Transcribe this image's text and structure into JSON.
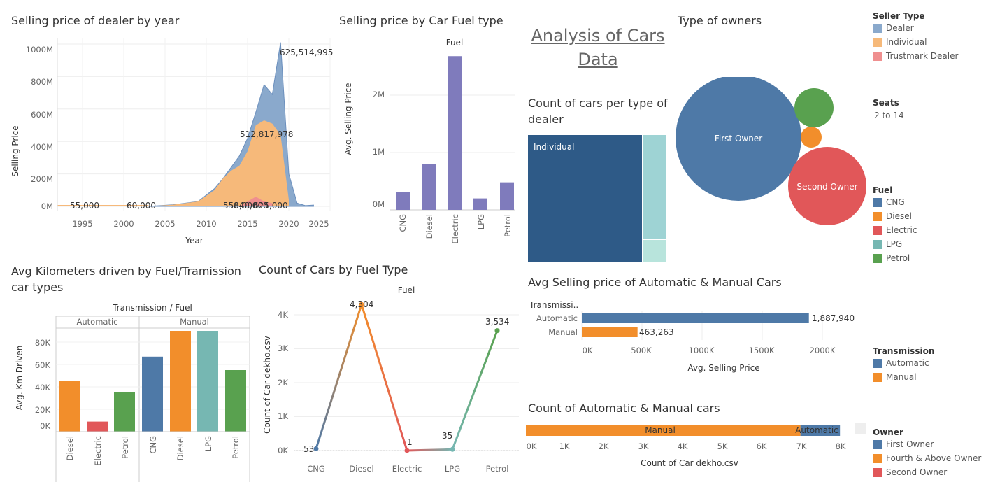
{
  "colors": {
    "dealer": "#8aa9cc",
    "individual": "#f6b97a",
    "trustmark": "#ef8f8f",
    "purple": "#7f7bbc",
    "blue": "#4e79a7",
    "orange": "#f28e2b",
    "red": "#e15759",
    "teal": "#76b7b2",
    "green": "#59a14f",
    "treemap_dark": "#2e5a87",
    "treemap_mid": "#9ed3d4",
    "treemap_light": "#b8e4dc"
  },
  "main_title": "Analysis of Cars Data",
  "charts": {
    "year": {
      "title": "Selling price of dealer by year",
      "xlabel": "Year",
      "ylabel": "Selling Price",
      "xticks": [
        "1995",
        "2000",
        "2005",
        "2010",
        "2015",
        "2020",
        "2025"
      ],
      "yticks": [
        "0M",
        "200M",
        "400M",
        "600M",
        "800M",
        "1000M"
      ],
      "labels": [
        "625,514,995",
        "512,817,978",
        "55,000",
        "60,000",
        "550,000",
        "840,000",
        "625,000"
      ]
    },
    "fuel_price": {
      "title": "Selling price by Car Fuel type",
      "header": "Fuel",
      "ylabel": "Avg. Selling Price",
      "yticks": [
        "0M",
        "1M",
        "2M"
      ],
      "categories": [
        "CNG",
        "Diesel",
        "Electric",
        "LPG",
        "Petrol"
      ]
    },
    "treemap": {
      "title": "Count of cars per type of dealer",
      "label": "Individual"
    },
    "owners": {
      "title": "Type of owners",
      "first": "First Owner",
      "second": "Second Owner"
    },
    "km": {
      "title": "Avg Kilometers driven by Fuel/Tramission car types",
      "header": "Transmission / Fuel",
      "groups": [
        "Automatic",
        "Manual"
      ],
      "ylabel": "Avg. Km Driven",
      "yticks": [
        "0K",
        "20K",
        "40K",
        "60K",
        "80K"
      ],
      "categories": [
        "Diesel",
        "Electric",
        "Petrol",
        "CNG",
        "Diesel",
        "LPG",
        "Petrol"
      ]
    },
    "count_fuel": {
      "title": "Count of Cars by Fuel Type",
      "header": "Fuel",
      "ylabel": "Count of Car dekho.csv",
      "yticks": [
        "0K",
        "1K",
        "2K",
        "3K",
        "4K"
      ],
      "categories": [
        "CNG",
        "Diesel",
        "Electric",
        "LPG",
        "Petrol"
      ],
      "labels": [
        "53",
        "4,304",
        "1",
        "35",
        "3,534"
      ]
    },
    "trans_price": {
      "title": "Avg Selling price of Automatic & Manual Cars",
      "header": "Transmissi..",
      "rows": [
        "Automatic",
        "Manual"
      ],
      "values": [
        "1,887,940",
        "463,263"
      ],
      "xticks": [
        "0K",
        "500K",
        "1000K",
        "1500K",
        "2000K"
      ],
      "xlabel": "Avg. Selling Price"
    },
    "trans_count": {
      "title": "Count of Automatic & Manual cars",
      "labels": [
        "Manual",
        "Automatic"
      ],
      "xticks": [
        "0K",
        "1K",
        "2K",
        "3K",
        "4K",
        "5K",
        "6K",
        "7K",
        "8K"
      ],
      "xlabel": "Count of Car dekho.csv"
    }
  },
  "chart_data": [
    {
      "type": "area",
      "title": "Selling price of dealer by year",
      "xlabel": "Year",
      "ylabel": "Selling Price",
      "ylim": [
        0,
        1000000000
      ],
      "series": [
        {
          "name": "Dealer",
          "x": [
            2003,
            2006,
            2009,
            2011,
            2012,
            2013,
            2014,
            2015,
            2016,
            2017,
            2018,
            2019,
            2020,
            2021,
            2022,
            2023
          ],
          "values": [
            0,
            10000000,
            30000000,
            110000000,
            170000000,
            240000000,
            310000000,
            420000000,
            580000000,
            750000000,
            690000000,
            1010000000,
            200000000,
            20000000,
            5000000,
            8000000
          ]
        },
        {
          "name": "Individual",
          "x": [
            2003,
            2006,
            2009,
            2011,
            2012,
            2013,
            2014,
            2015,
            2016,
            2017,
            2018,
            2019,
            2020
          ],
          "values": [
            0,
            10000000,
            30000000,
            100000000,
            170000000,
            220000000,
            250000000,
            340000000,
            500000000,
            530000000,
            510000000,
            440000000,
            40000000
          ]
        },
        {
          "name": "Trustmark Dealer",
          "x": [
            2014,
            2015,
            2016,
            2017,
            2018
          ],
          "values": [
            0,
            30000000,
            60000000,
            30000000,
            20000000
          ]
        }
      ]
    },
    {
      "type": "bar",
      "title": "Selling price by Car Fuel type",
      "categories": [
        "CNG",
        "Diesel",
        "Electric",
        "LPG",
        "Petrol"
      ],
      "values": [
        310000,
        800000,
        2680000,
        200000,
        480000
      ],
      "ylim": [
        0,
        2900000
      ]
    },
    {
      "type": "bar",
      "title": "Avg Kilometers driven by Fuel/Tramission car types",
      "categories": [
        "Automatic/Diesel",
        "Automatic/Electric",
        "Automatic/Petrol",
        "Manual/CNG",
        "Manual/Diesel",
        "Manual/LPG",
        "Manual/Petrol"
      ],
      "values": [
        45000,
        9000,
        35000,
        67000,
        90000,
        90000,
        55000
      ]
    },
    {
      "type": "line",
      "title": "Count of Cars by Fuel Type",
      "categories": [
        "CNG",
        "Diesel",
        "Electric",
        "LPG",
        "Petrol"
      ],
      "values": [
        53,
        4304,
        1,
        35,
        3534
      ]
    },
    {
      "type": "bar",
      "title": "Avg Selling price of Automatic & Manual Cars",
      "categories": [
        "Automatic",
        "Manual"
      ],
      "values": [
        1887940,
        463263
      ]
    },
    {
      "type": "bar",
      "title": "Count of Automatic & Manual cars",
      "categories": [
        "Manual",
        "Automatic"
      ],
      "values": [
        6950,
        1000
      ]
    }
  ],
  "legends": {
    "seller": {
      "title": "Seller Type",
      "items": [
        "Dealer",
        "Individual",
        "Trustmark Dealer"
      ]
    },
    "seats": {
      "title": "Seats",
      "value": "2 to 14"
    },
    "fuel": {
      "title": "Fuel",
      "items": [
        "CNG",
        "Diesel",
        "Electric",
        "LPG",
        "Petrol"
      ]
    },
    "transmission": {
      "title": "Transmission",
      "items": [
        "Automatic",
        "Manual"
      ]
    },
    "owner": {
      "title": "Owner",
      "items": [
        "First Owner",
        "Fourth & Above Owner",
        "Second Owner"
      ]
    }
  }
}
